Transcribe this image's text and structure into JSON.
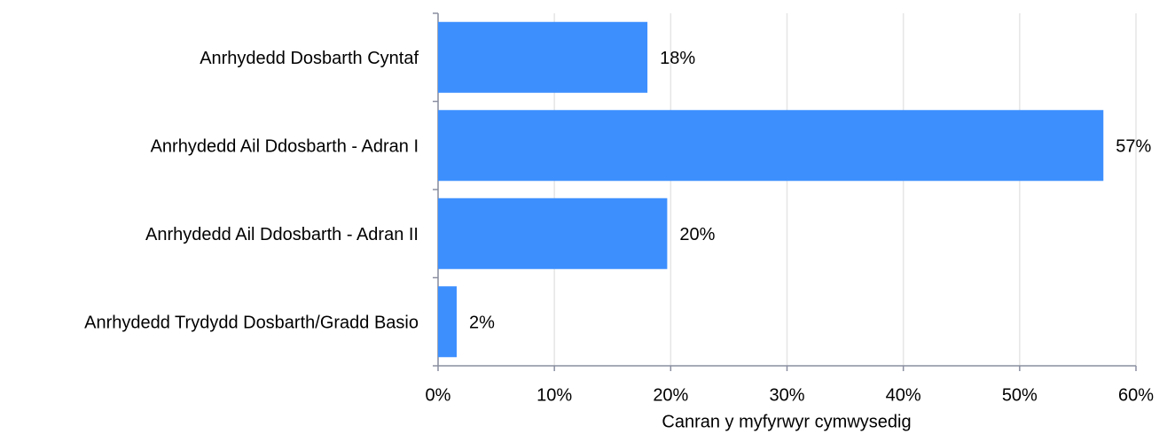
{
  "chart_data": {
    "type": "bar",
    "orientation": "horizontal",
    "x_label": "Canran y myfyrwyr cymwysedig",
    "categories": [
      "Anrhydedd Dosbarth Cyntaf",
      "Anrhydedd Ail Ddosbarth - Adran I",
      "Anrhydedd Ail Ddosbarth - Adran II",
      "Anrhydedd Trydydd Dosbarth/Gradd Basio"
    ],
    "values": [
      18,
      57.2,
      19.7,
      1.6
    ],
    "value_labels": [
      "18%",
      "57%",
      "20%",
      "2%"
    ],
    "color": "#3d8ffe",
    "xlim": [
      0,
      60
    ],
    "xticks": [
      {
        "value": 0,
        "label": "0%"
      },
      {
        "value": 10,
        "label": "10%"
      },
      {
        "value": 20,
        "label": "20%"
      },
      {
        "value": 30,
        "label": "30%"
      },
      {
        "value": 40,
        "label": "40%"
      },
      {
        "value": 50,
        "label": "50%"
      },
      {
        "value": 60,
        "label": "60%"
      }
    ],
    "grid": true
  }
}
